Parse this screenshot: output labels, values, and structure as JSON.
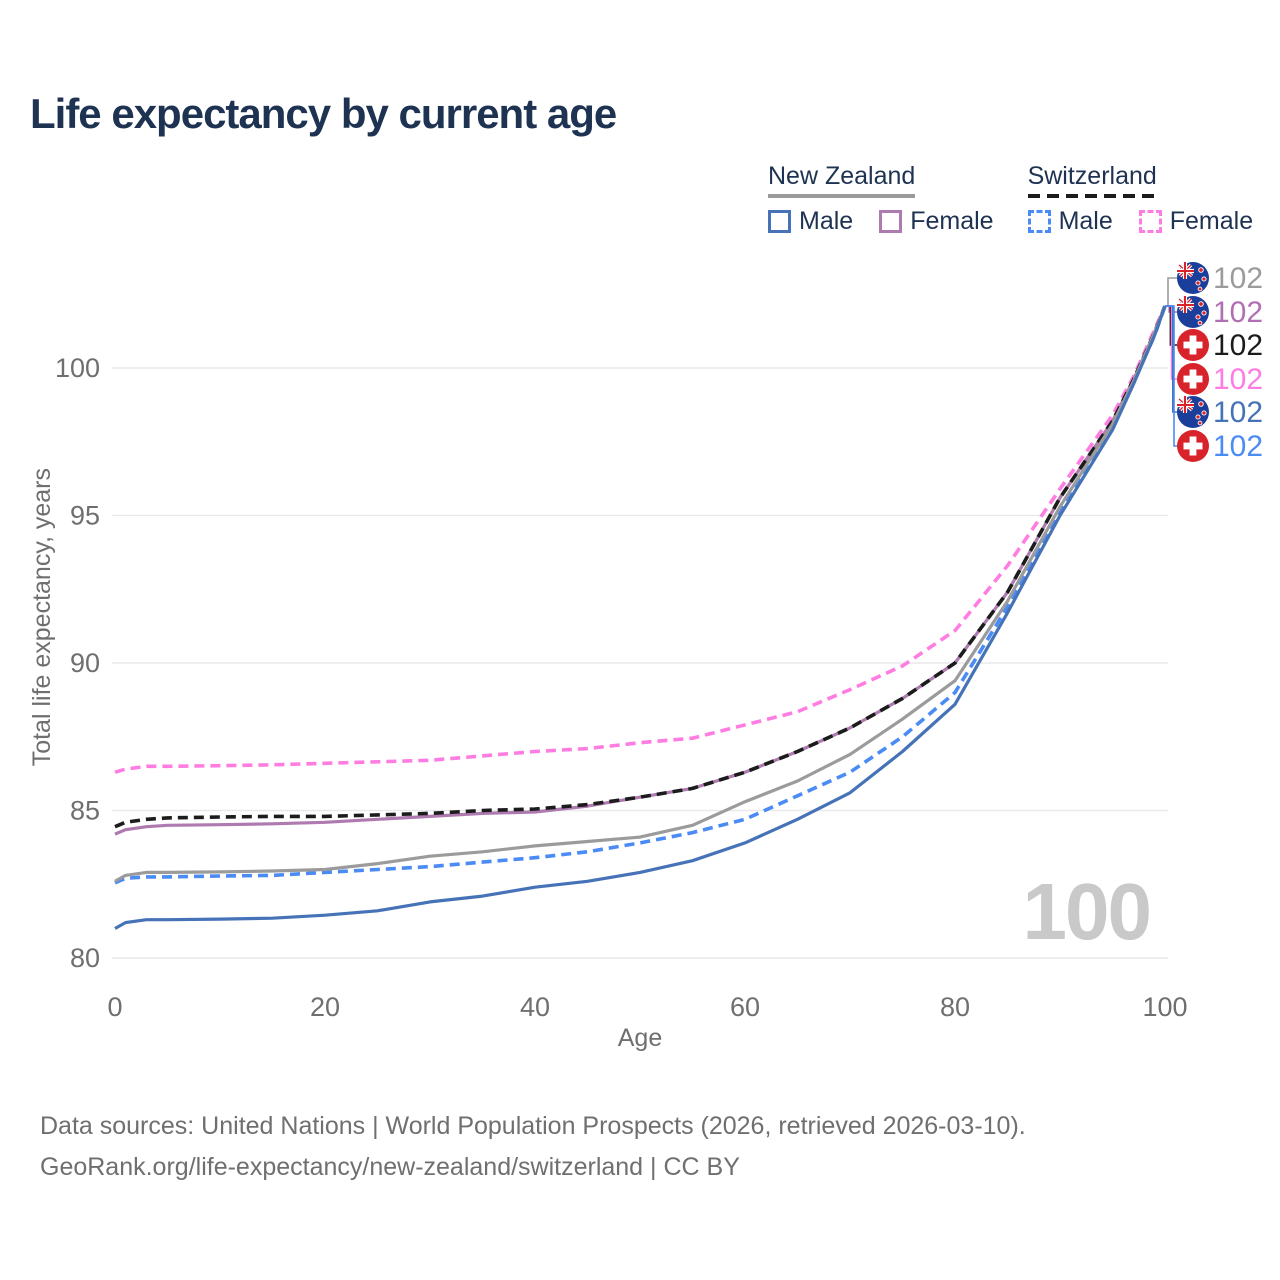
{
  "title": "Life expectancy by current age",
  "watermark_age": "100",
  "legend": {
    "groups": [
      {
        "country": "New Zealand",
        "line_style": "solid",
        "line_color": "#9b9b9b",
        "items": [
          {
            "label": "Male",
            "color": "#4673b8",
            "dashed": false
          },
          {
            "label": "Female",
            "color": "#ae7ab0",
            "dashed": false
          }
        ]
      },
      {
        "country": "Switzerland",
        "line_style": "dashed",
        "line_color": "#1c1c1c",
        "items": [
          {
            "label": "Male",
            "color": "#4b8bf5",
            "dashed": true
          },
          {
            "label": "Female",
            "color": "#ff7de2",
            "dashed": true
          }
        ]
      }
    ]
  },
  "footer": {
    "line1": "Data sources: United Nations | World Population Prospects (2026, retrieved 2026-03-10).",
    "line2": "GeoRank.org/life-expectancy/new-zealand/switzerland | CC BY"
  },
  "chart_data": {
    "type": "line",
    "title": "Life expectancy by current age",
    "xlabel": "Age",
    "ylabel": "Total life expectancy, years",
    "x_ticks": [
      0,
      20,
      40,
      60,
      80,
      100
    ],
    "y_ticks": [
      80,
      85,
      90,
      95,
      100
    ],
    "xlim": [
      0,
      100
    ],
    "ylim": [
      79.5,
      103
    ],
    "grid": "horizontal",
    "legend_position": "top-right",
    "x": [
      0,
      1,
      3,
      5,
      10,
      15,
      20,
      25,
      30,
      35,
      40,
      45,
      50,
      55,
      60,
      65,
      70,
      75,
      80,
      85,
      90,
      95,
      97,
      99,
      100
    ],
    "series": [
      {
        "name": "Switzerland Female",
        "country": "Switzerland",
        "sex": "Female",
        "color": "#ff7de2",
        "dashed": true,
        "values": [
          86.3,
          86.4,
          86.5,
          86.5,
          86.52,
          86.55,
          86.6,
          86.65,
          86.7,
          86.85,
          87.0,
          87.1,
          87.3,
          87.45,
          87.9,
          88.35,
          89.1,
          89.9,
          91.1,
          93.3,
          95.9,
          98.4,
          99.7,
          101.3,
          102.1
        ]
      },
      {
        "name": "New Zealand Female",
        "country": "New Zealand",
        "sex": "Female",
        "color": "#ae7ab0",
        "dashed": false,
        "values": [
          84.2,
          84.35,
          84.45,
          84.5,
          84.52,
          84.55,
          84.6,
          84.7,
          84.8,
          84.9,
          84.95,
          85.15,
          85.45,
          85.75,
          86.3,
          87.0,
          87.8,
          88.8,
          90.0,
          92.4,
          95.6,
          98.2,
          99.6,
          101.2,
          102.1
        ]
      },
      {
        "name": "Switzerland Both sexes",
        "country": "Switzerland",
        "sex": "Both",
        "color": "#1c1c1c",
        "dashed": true,
        "values": [
          84.45,
          84.6,
          84.7,
          84.75,
          84.78,
          84.8,
          84.8,
          84.85,
          84.9,
          85.0,
          85.05,
          85.2,
          85.45,
          85.75,
          86.3,
          87.0,
          87.8,
          88.8,
          90.0,
          92.4,
          95.6,
          98.2,
          99.6,
          101.2,
          102.1
        ]
      },
      {
        "name": "Switzerland Male",
        "country": "Switzerland",
        "sex": "Male",
        "color": "#4b8bf5",
        "dashed": true,
        "values": [
          82.55,
          82.7,
          82.75,
          82.75,
          82.78,
          82.8,
          82.9,
          83.0,
          83.1,
          83.25,
          83.4,
          83.6,
          83.9,
          84.25,
          84.7,
          85.5,
          86.3,
          87.5,
          89.0,
          91.9,
          95.1,
          98.0,
          99.5,
          101.1,
          102.1
        ]
      },
      {
        "name": "New Zealand Both sexes",
        "country": "New Zealand",
        "sex": "Both",
        "color": "#9b9b9b",
        "dashed": false,
        "values": [
          82.6,
          82.8,
          82.9,
          82.9,
          82.92,
          82.95,
          83.0,
          83.2,
          83.45,
          83.6,
          83.8,
          83.95,
          84.1,
          84.5,
          85.3,
          86.0,
          86.9,
          88.1,
          89.4,
          92.1,
          95.3,
          98.1,
          99.55,
          101.2,
          102.1
        ]
      },
      {
        "name": "New Zealand Male",
        "country": "New Zealand",
        "sex": "Male",
        "color": "#4673b8",
        "dashed": false,
        "values": [
          81.0,
          81.2,
          81.3,
          81.3,
          81.32,
          81.35,
          81.45,
          81.6,
          81.9,
          82.1,
          82.4,
          82.6,
          82.9,
          83.3,
          83.9,
          84.7,
          85.6,
          87.0,
          88.6,
          91.7,
          95.0,
          97.9,
          99.45,
          101.1,
          102.1
        ]
      }
    ],
    "end_labels": [
      {
        "series": "New Zealand Both sexes",
        "flag": "nz",
        "text": "102",
        "color": "#9b9b9b"
      },
      {
        "series": "New Zealand Female",
        "flag": "nz",
        "text": "102",
        "color": "#b06fb2"
      },
      {
        "series": "Switzerland Both sexes",
        "flag": "ch",
        "text": "102",
        "color": "#1c1c1c"
      },
      {
        "series": "Switzerland Female",
        "flag": "ch",
        "text": "102",
        "color": "#ff7de2"
      },
      {
        "series": "New Zealand Male",
        "flag": "nz",
        "text": "102",
        "color": "#4673b8"
      },
      {
        "series": "Switzerland Male",
        "flag": "ch",
        "text": "102",
        "color": "#4b8bf5"
      }
    ],
    "convergence": {
      "age": 100,
      "value": 102
    }
  }
}
